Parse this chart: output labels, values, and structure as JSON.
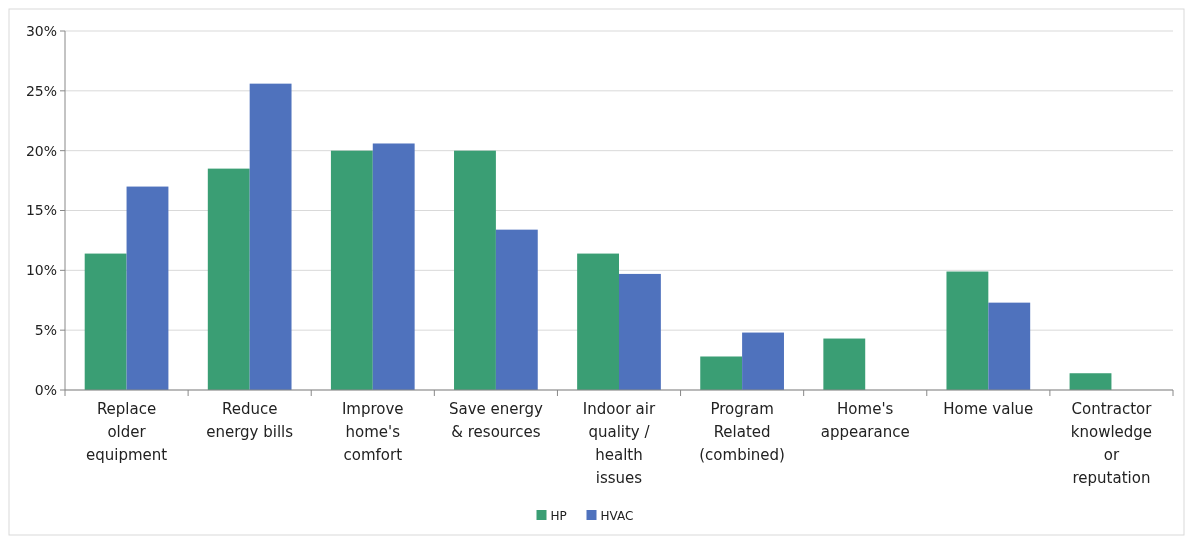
{
  "chart_data": {
    "type": "bar",
    "categories": [
      "Replace older equipment",
      "Reduce energy bills",
      "Improve home's comfort",
      "Save energy & resources",
      "Indoor air quality / health issues",
      "Program Related (combined)",
      "Home's appearance",
      "Home value",
      "Contractor knowledge or reputation"
    ],
    "series": [
      {
        "name": "HP",
        "color": "#3a9e74",
        "values": [
          11.4,
          18.5,
          20.0,
          20.0,
          11.4,
          2.8,
          4.3,
          9.9,
          1.4
        ]
      },
      {
        "name": "HVAC",
        "color": "#4f72bd",
        "values": [
          17.0,
          25.6,
          20.6,
          13.4,
          9.7,
          4.8,
          null,
          7.3,
          null
        ]
      }
    ],
    "ylim": [
      0,
      30
    ],
    "yticks": [
      {
        "value": 0,
        "label": "0%"
      },
      {
        "value": 5,
        "label": "5%"
      },
      {
        "value": 10,
        "label": "10%"
      },
      {
        "value": 15,
        "label": "15%"
      },
      {
        "value": 20,
        "label": "20%"
      },
      {
        "value": 25,
        "label": "25%"
      },
      {
        "value": 30,
        "label": "30%"
      }
    ],
    "grid": "y",
    "legend": "bottom"
  }
}
